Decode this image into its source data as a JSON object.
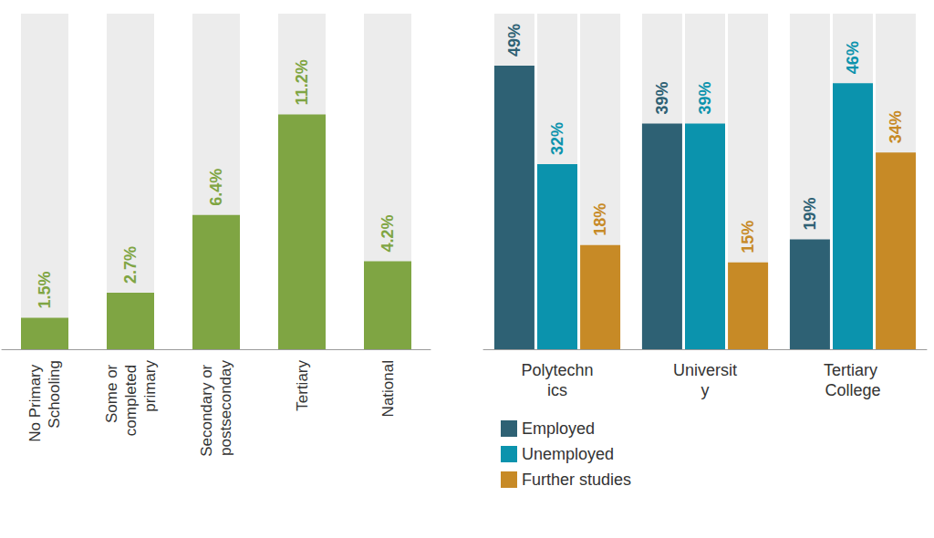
{
  "chart_data": [
    {
      "type": "bar",
      "categories": [
        "No Primary Schooling",
        "Some or completed primary",
        "Secondary or postseconday",
        "Tertiary",
        "National"
      ],
      "values": [
        1.5,
        2.7,
        6.4,
        11.2,
        4.2
      ],
      "value_labels": [
        "1.5%",
        "2.7%",
        "6.4%",
        "11.2%",
        "4.2%"
      ],
      "color": "#7fa543",
      "ylim": [
        0,
        16
      ],
      "data_labels": true,
      "tick_labels": "x"
    },
    {
      "type": "bar",
      "categories": [
        "Polytechnics",
        "University",
        "Tertiary College"
      ],
      "series": [
        {
          "name": "Employed",
          "color": "#2e6174",
          "values": [
            49,
            39,
            19
          ],
          "value_labels": [
            "49%",
            "39%",
            "19%"
          ]
        },
        {
          "name": "Unemployed",
          "color": "#0b93ad",
          "values": [
            32,
            39,
            46
          ],
          "value_labels": [
            "32%",
            "39%",
            "46%"
          ]
        },
        {
          "name": "Further studies",
          "color": "#c78a26",
          "values": [
            18,
            15,
            34
          ],
          "value_labels": [
            "18%",
            "15%",
            "34%"
          ]
        }
      ],
      "ylim": [
        0,
        58
      ],
      "data_labels": true,
      "tick_labels": "x",
      "legend": "lower left"
    }
  ]
}
